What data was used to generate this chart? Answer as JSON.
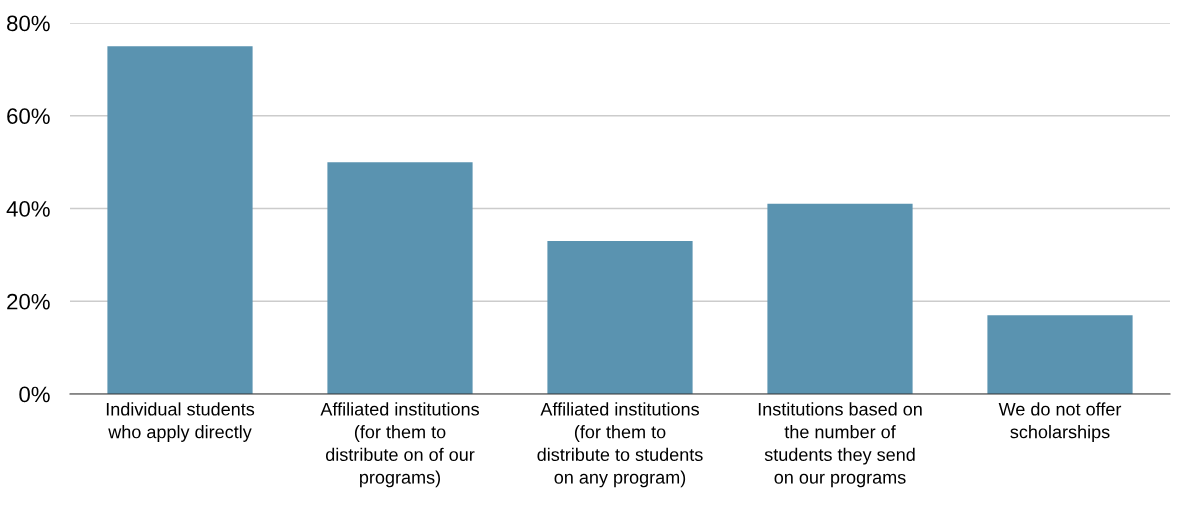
{
  "chart_data": {
    "type": "bar",
    "categories": [
      "Individual students\nwho apply directly",
      "Affiliated institutions\n(for them to\ndistribute on of our\nprograms)",
      "Affiliated institutions\n(for them to\ndistribute to students\non any program)",
      "Institutions based on\nthe number of\nstudents they send\non our programs",
      "We do not offer\nscholarships"
    ],
    "values": [
      75,
      50,
      33,
      41,
      17
    ],
    "color": "#5a93b0",
    "ylim": [
      0,
      80
    ],
    "yticks": [
      {
        "value": 0,
        "label": "0%"
      },
      {
        "value": 20,
        "label": "20%"
      },
      {
        "value": 40,
        "label": "40%"
      },
      {
        "value": 60,
        "label": "60%"
      },
      {
        "value": 80,
        "label": "80%"
      }
    ],
    "grid": "y"
  }
}
